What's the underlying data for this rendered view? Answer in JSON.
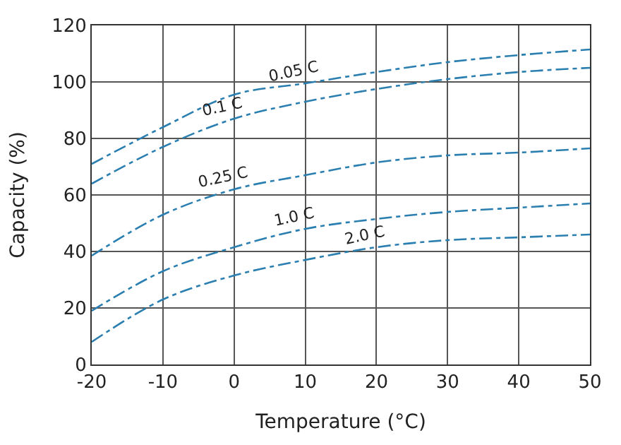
{
  "chart_data": {
    "type": "line",
    "xlabel": "Temperature (°C)",
    "ylabel": "Capacity (%)",
    "x": [
      -20,
      -10,
      0,
      10,
      20,
      30,
      40,
      50
    ],
    "series": [
      {
        "color": "#2a7fb0",
        "values": [
          71,
          84,
          95.5,
          99.5,
          103.5,
          107,
          109.5,
          111.5
        ]
      },
      {
        "color": "#2a7fb0",
        "values": [
          64,
          77,
          87,
          93,
          97.5,
          101,
          103.5,
          105
        ]
      },
      {
        "color": "#2a7fb0",
        "values": [
          38.5,
          53,
          62,
          67,
          71.5,
          74,
          75,
          76.5
        ]
      },
      {
        "color": "#2a7fb0",
        "values": [
          19,
          33,
          41.5,
          48,
          51.5,
          54,
          55.5,
          57
        ]
      },
      {
        "color": "#2a7fb0",
        "values": [
          8,
          23,
          31.5,
          37,
          41.5,
          44,
          45,
          46
        ]
      }
    ],
    "annotations": [
      {
        "text": "0.05 C",
        "x": 10,
        "y": 99.5
      },
      {
        "text": "0.1 C",
        "x": 0,
        "y": 87
      },
      {
        "text": "0.25 C",
        "x": 0,
        "y": 62
      },
      {
        "text": "1.0 C",
        "x": 10,
        "y": 48
      },
      {
        "text": "2.0 C",
        "x": 20,
        "y": 41.5
      }
    ],
    "xlim": [
      -20,
      50
    ],
    "xticks": [
      -20,
      -10,
      0,
      10,
      20,
      30,
      40,
      50
    ],
    "ylim": [
      0,
      120
    ],
    "yticks": [
      0,
      20,
      40,
      60,
      80,
      100,
      120
    ],
    "grid": true,
    "line_style": "dashdot",
    "marker": "none"
  }
}
